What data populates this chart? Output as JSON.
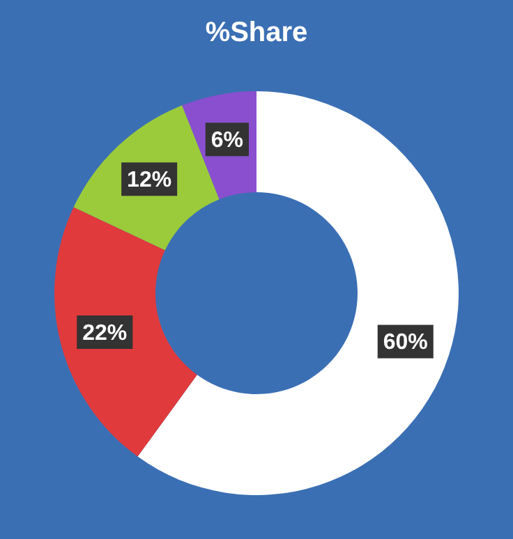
{
  "chart_data": {
    "type": "donut",
    "title": "%Share",
    "categories": [
      null,
      null,
      null,
      null
    ],
    "values": [
      60,
      22,
      12,
      6
    ],
    "colors": [
      "#ffffff",
      "#e03a3c",
      "#9bcb3b",
      "#8a4fcf"
    ],
    "value_labels": [
      "60%",
      "22%",
      "12%",
      "6%"
    ],
    "legend": false
  }
}
